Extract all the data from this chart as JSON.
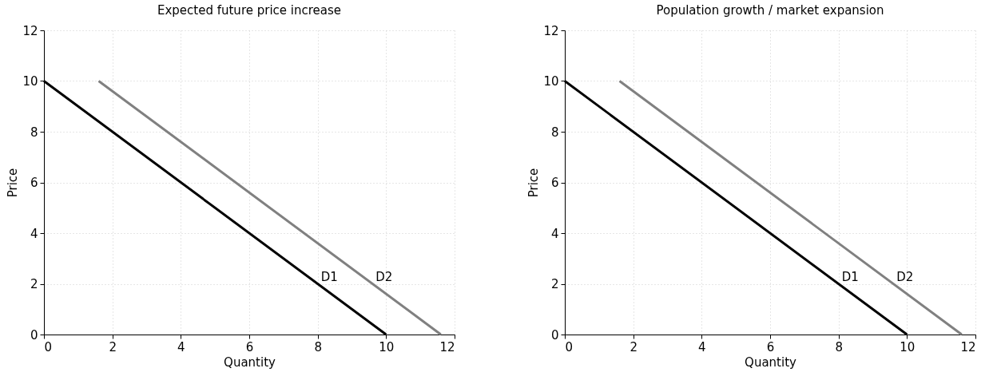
{
  "chart_data": [
    {
      "type": "line",
      "title": "Expected future price increase",
      "xlabel": "Quantity",
      "ylabel": "Price",
      "xlim": [
        0,
        12
      ],
      "ylim": [
        0,
        12
      ],
      "xticks": [
        0,
        2,
        4,
        6,
        8,
        10,
        12
      ],
      "yticks": [
        0,
        2,
        4,
        6,
        8,
        10,
        12
      ],
      "grid": true,
      "marker": "none",
      "line_style": "solid",
      "series": [
        {
          "name": "D1",
          "x": [
            0,
            10
          ],
          "values": [
            10,
            0
          ],
          "color": "#000000"
        },
        {
          "name": "D2",
          "x": [
            1.6,
            11.6
          ],
          "values": [
            10,
            0
          ],
          "color": "#808080"
        }
      ]
    },
    {
      "type": "line",
      "title": "Population growth / market expansion",
      "xlabel": "Quantity",
      "ylabel": "Price",
      "xlim": [
        0,
        12
      ],
      "ylim": [
        0,
        12
      ],
      "xticks": [
        0,
        2,
        4,
        6,
        8,
        10,
        12
      ],
      "yticks": [
        0,
        2,
        4,
        6,
        8,
        10,
        12
      ],
      "grid": true,
      "marker": "none",
      "line_style": "solid",
      "series": [
        {
          "name": "D1",
          "x": [
            0,
            10
          ],
          "values": [
            10,
            0
          ],
          "color": "#000000"
        },
        {
          "name": "D2",
          "x": [
            1.6,
            11.6
          ],
          "values": [
            10,
            0
          ],
          "color": "#808080"
        }
      ]
    }
  ]
}
